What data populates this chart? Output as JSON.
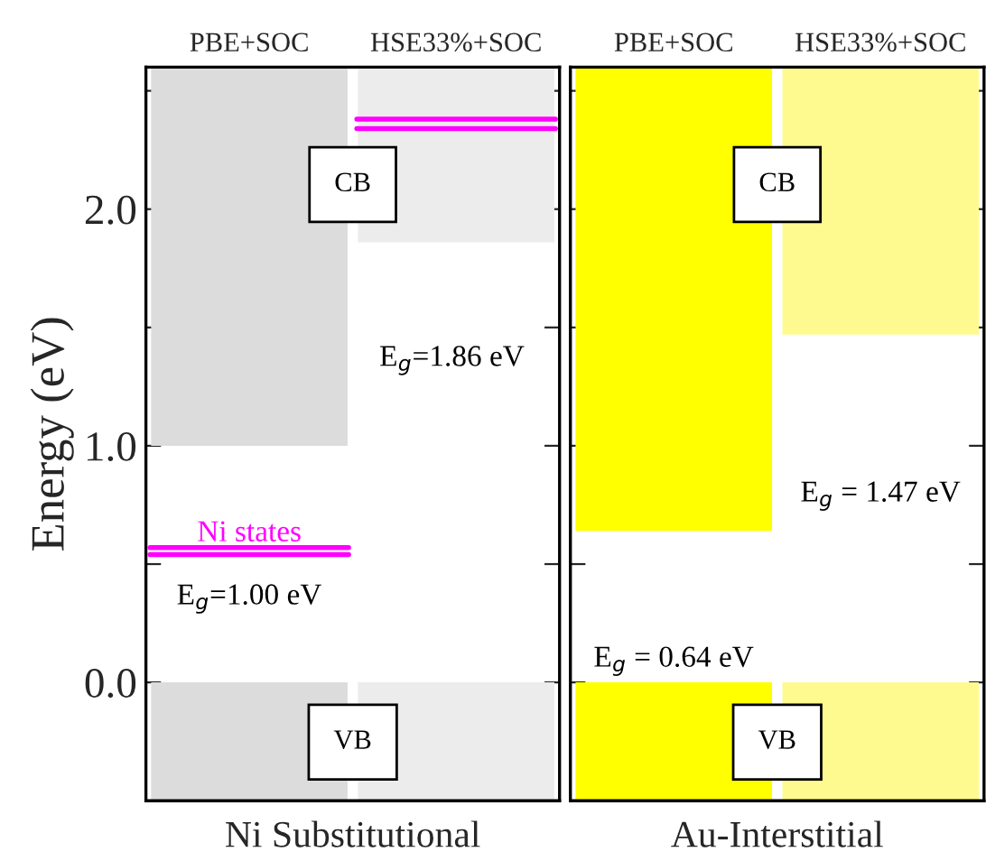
{
  "chart_data": [
    {
      "type": "bar",
      "categories": [
        "PBE+SOC",
        "HSE33%+SOC"
      ],
      "xlabel": "Ni Substitutional",
      "ylabel": "Energy (eV)",
      "series": [
        {
          "colors": [
            "#dcdcdc",
            "#ececec"
          ],
          "values": [
            0.5,
            0.5
          ],
          "base": [
            -0.5,
            -0.5
          ]
        },
        {
          "colors": [
            "#dcdcdc",
            "#ececec"
          ],
          "values": [
            1.6,
            0.74
          ],
          "base": [
            1.0,
            1.86
          ]
        }
      ],
      "ref_lines": [
        {
          "axis": "y",
          "value": 0.57,
          "label": "Ni states",
          "color": "#ff00ff"
        },
        {
          "axis": "y",
          "value": 0.54,
          "color": "#ff00ff"
        },
        {
          "axis": "y",
          "value": 2.38,
          "color": "#ff00ff"
        },
        {
          "axis": "y",
          "value": 2.34,
          "color": "#ff00ff"
        }
      ],
      "ylim": [
        -0.5,
        2.6
      ],
      "yticks": [
        {
          "value": -0.5,
          "label": null
        },
        {
          "value": 0.0,
          "label": "0.0"
        },
        {
          "value": 0.5,
          "label": null
        },
        {
          "value": 1.0,
          "label": "1.0"
        },
        {
          "value": 1.5,
          "label": null
        },
        {
          "value": 2.0,
          "label": "2.0"
        },
        {
          "value": 2.5,
          "label": null
        }
      ],
      "annotations": [
        "E$_{g}$=1.00 eV",
        "E$_{g}$=1.86 eV",
        "CB",
        "VB"
      ]
    },
    {
      "type": "bar",
      "categories": [
        "PBE+SOC",
        "HSE33%+SOC"
      ],
      "xlabel": "Au-Interstitial",
      "series": [
        {
          "colors": [
            "#ffff00",
            "#fffa90"
          ],
          "values": [
            0.5,
            0.5
          ],
          "base": [
            -0.5,
            -0.5
          ]
        },
        {
          "colors": [
            "#ffff00",
            "#fffa90"
          ],
          "values": [
            1.96,
            1.13
          ],
          "base": [
            0.64,
            1.47
          ]
        }
      ],
      "ylim": [
        -0.5,
        2.6
      ],
      "yticks": [
        {
          "value": -0.5,
          "label": null
        },
        {
          "value": 0.0,
          "label": null
        },
        {
          "value": 0.5,
          "label": null
        },
        {
          "value": 1.0,
          "label": null
        },
        {
          "value": 1.5,
          "label": null
        },
        {
          "value": 2.0,
          "label": null
        },
        {
          "value": 2.5,
          "label": null
        }
      ],
      "tick_labels": "x",
      "annotations": [
        "E$_{g}$ = 0.64 eV",
        "E$_{g}$ = 1.47 eV",
        "CB",
        "VB"
      ]
    }
  ]
}
